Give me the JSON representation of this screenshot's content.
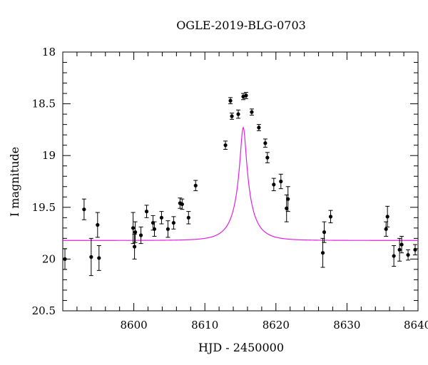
{
  "chart_data": {
    "type": "scatter",
    "title": "OGLE-2019-BLG-0703",
    "xlabel": "HJD - 2450000",
    "ylabel": "I magnitude",
    "xlim": [
      8590,
      8640
    ],
    "ylim": [
      20.5,
      18
    ],
    "y_inverted": true,
    "xticks": [
      8600,
      8610,
      8620,
      8630,
      8640
    ],
    "xtick_labels": [
      "8600",
      "8610",
      "8620",
      "8630",
      "8640"
    ],
    "yticks": [
      18,
      18.5,
      19,
      19.5,
      20,
      20.5
    ],
    "ytick_labels": [
      "18",
      "18.5",
      "19",
      "19.5",
      "20",
      "20.5"
    ],
    "grid": false,
    "colors": {
      "points": "#000000",
      "model": "#e020e0"
    },
    "series": [
      {
        "type": "scatter",
        "x": [
          8590.3,
          8593.0,
          8594.0,
          8594.9,
          8595.1,
          8599.9,
          8600.1,
          8600.2,
          8601.0,
          8601.8,
          8602.7,
          8602.9,
          8603.9,
          8604.8,
          8605.6,
          8606.5,
          8606.8,
          8607.7,
          8608.7,
          8612.9,
          8613.6,
          8613.8,
          8614.7,
          8615.4,
          8615.8,
          8616.6,
          8617.6,
          8618.5,
          8618.8,
          8619.7,
          8620.7,
          8621.5,
          8621.7,
          8626.6,
          8626.8,
          8627.7,
          8635.5,
          8635.7,
          8636.6,
          8637.4,
          8637.7,
          8638.6,
          8639.6
        ],
        "y": [
          20.0,
          19.52,
          19.98,
          19.67,
          19.99,
          19.7,
          19.88,
          19.74,
          19.77,
          19.54,
          19.65,
          19.71,
          19.6,
          19.71,
          19.65,
          19.46,
          19.47,
          19.6,
          19.29,
          18.9,
          18.47,
          18.62,
          18.6,
          18.43,
          18.42,
          18.58,
          18.73,
          18.88,
          19.02,
          19.28,
          19.25,
          19.51,
          19.42,
          19.94,
          19.74,
          19.59,
          19.71,
          19.59,
          19.97,
          19.91,
          19.86,
          19.96,
          19.91
        ],
        "err": [
          0.1,
          0.1,
          0.18,
          0.12,
          0.12,
          0.15,
          0.12,
          0.1,
          0.08,
          0.06,
          0.07,
          0.07,
          0.06,
          0.08,
          0.06,
          0.05,
          0.05,
          0.06,
          0.05,
          0.04,
          0.03,
          0.03,
          0.04,
          0.03,
          0.03,
          0.03,
          0.03,
          0.04,
          0.05,
          0.06,
          0.07,
          0.13,
          0.12,
          0.14,
          0.1,
          0.06,
          0.07,
          0.1,
          0.1,
          0.11,
          0.08,
          0.05,
          0.05
        ]
      },
      {
        "type": "line",
        "model": "point-lens",
        "t0": 8615.4,
        "tE": 2.8,
        "u0": 0.14,
        "base_mag": 19.82,
        "fs": 0.28
      }
    ]
  }
}
